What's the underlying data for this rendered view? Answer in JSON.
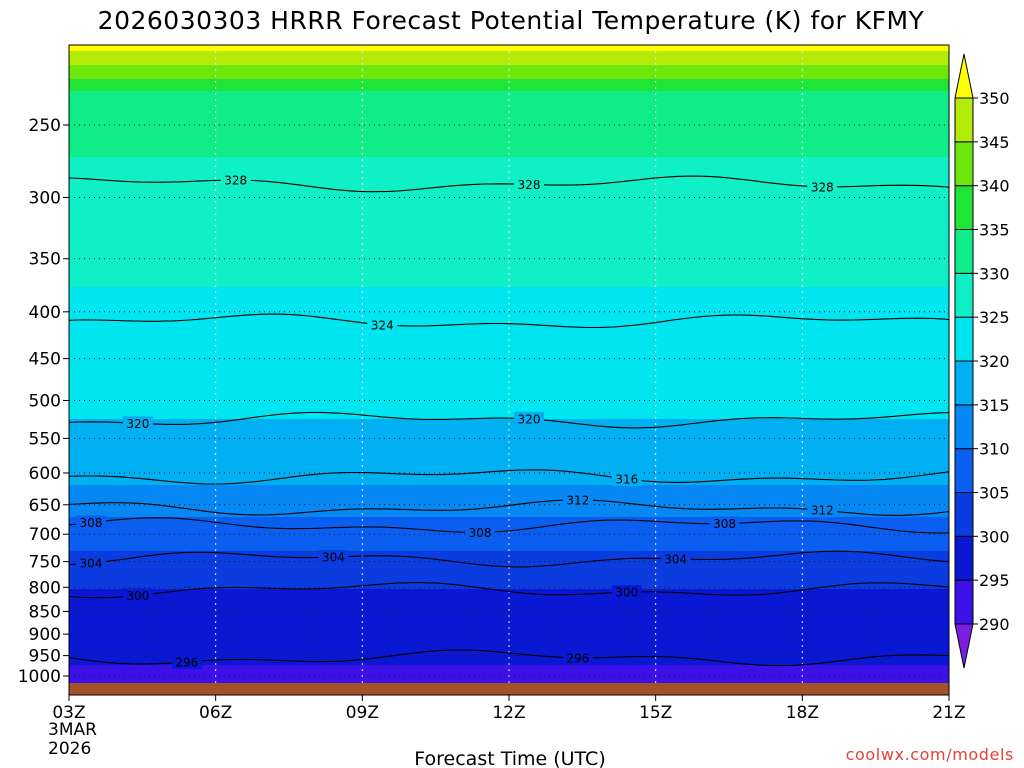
{
  "chart_data": {
    "type": "heatmap",
    "title": "2026030303 HRRR Forecast Potential Temperature (K) for KFMY",
    "xlabel": "Forecast Time (UTC)",
    "ylabel": "",
    "x_ticks": [
      "03Z",
      "06Z",
      "09Z",
      "12Z",
      "15Z",
      "18Z",
      "21Z"
    ],
    "x_start_label": [
      "3MAR",
      "2026"
    ],
    "y_ticks": [
      1000,
      950,
      900,
      850,
      800,
      750,
      700,
      650,
      600,
      550,
      500,
      450,
      400,
      350,
      300,
      250
    ],
    "y_axis_scale": "log pressure (hPa), inverted",
    "colorbar": {
      "levels": [
        290,
        295,
        300,
        305,
        310,
        315,
        320,
        325,
        330,
        335,
        340,
        345,
        350
      ],
      "colors": [
        "#7a1fe0",
        "#3a12e8",
        "#0a18d4",
        "#0a3ce0",
        "#0a5ff0",
        "#0688f4",
        "#00b0f2",
        "#00e6f0",
        "#10f0c6",
        "#10ec88",
        "#20e436",
        "#6ee80c",
        "#b2ec08",
        "#ffff00"
      ],
      "extend": "both"
    },
    "contours": [
      {
        "value": 296,
        "label": "296",
        "pressure_hPa": 955,
        "labeled_at": [
          "05Z",
          "13Z"
        ]
      },
      {
        "value": 300,
        "label": "300",
        "pressure_hPa": 805,
        "labeled_at": [
          "04Z",
          "14Z"
        ]
      },
      {
        "value": 304,
        "label": "304",
        "pressure_hPa": 745,
        "labeled_at": [
          "03Z",
          "08Z",
          "15Z"
        ]
      },
      {
        "value": 308,
        "label": "308",
        "pressure_hPa": 685,
        "labeled_at": [
          "03Z",
          "11Z",
          "16Z"
        ]
      },
      {
        "value": 312,
        "label": "312",
        "pressure_hPa": 655,
        "labeled_at": [
          "13Z",
          "18Z"
        ]
      },
      {
        "value": 316,
        "label": "316",
        "pressure_hPa": 605,
        "labeled_at": [
          "14Z"
        ]
      },
      {
        "value": 320,
        "label": "320",
        "pressure_hPa": 525,
        "labeled_at": [
          "04Z",
          "12Z"
        ]
      },
      {
        "value": 324,
        "label": "324",
        "pressure_hPa": 410,
        "labeled_at": [
          "09Z"
        ]
      },
      {
        "value": 328,
        "label": "328",
        "pressure_hPa": 290,
        "labeled_at": [
          "06Z",
          "12Z",
          "18Z"
        ]
      }
    ],
    "terrain_color": "#a5522b"
  },
  "credit": "coolwx.com/models"
}
